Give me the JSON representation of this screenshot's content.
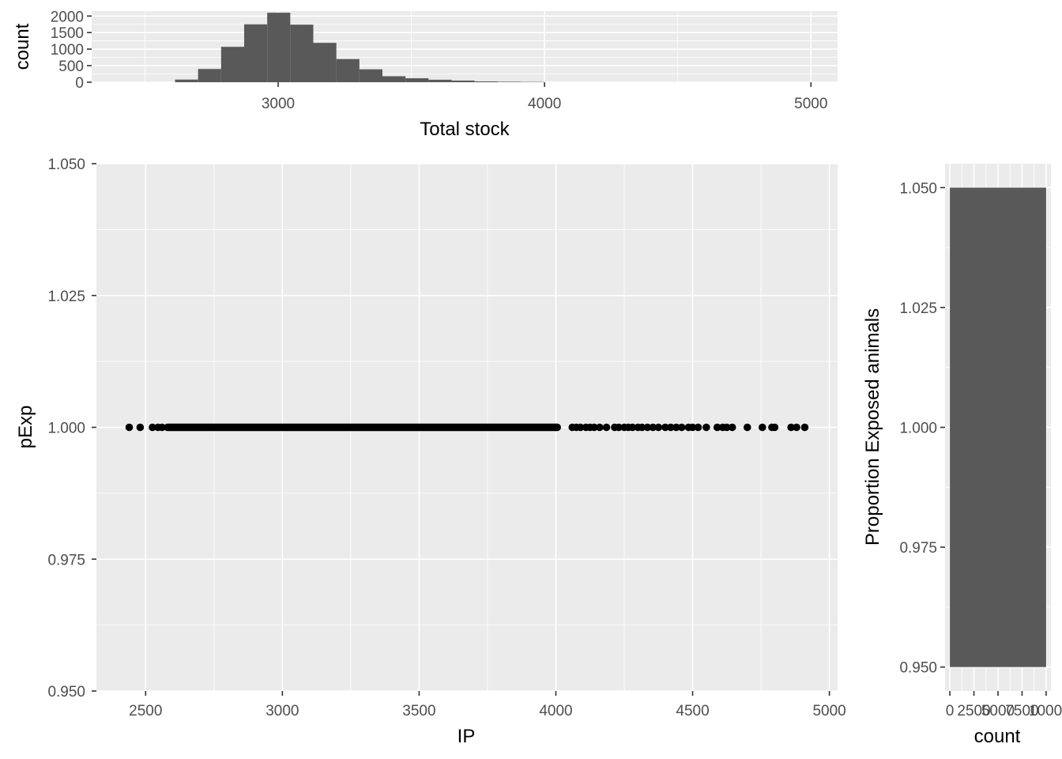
{
  "colors": {
    "panel": "#ebebeb",
    "bar": "#595959",
    "point": "#000000",
    "grid": "#ffffff",
    "tick_text": "#4d4d4d"
  },
  "chart_data": [
    {
      "id": "top-histogram",
      "type": "bar",
      "xlabel": "Total stock",
      "ylabel": "count",
      "xlim": [
        2300,
        5100
      ],
      "ylim": [
        0,
        2150
      ],
      "x_ticks": [
        3000,
        4000,
        5000
      ],
      "x_tick_labels": [
        "3000",
        "4000",
        "5000"
      ],
      "y_ticks": [
        0,
        500,
        1000,
        1500,
        2000
      ],
      "y_tick_labels": [
        "0",
        "500",
        "1000",
        "1500",
        "2000"
      ],
      "bin_width": 86.5,
      "bins_x_start": [
        2613,
        2699.5,
        2786,
        2872.5,
        2959,
        3045.5,
        3132,
        3218.5,
        3305,
        3391.5,
        3478,
        3564.5,
        3651,
        3737.5,
        3824,
        3910.5
      ],
      "values": [
        80,
        400,
        1070,
        1750,
        2100,
        1740,
        1190,
        700,
        390,
        180,
        120,
        75,
        50,
        25,
        15,
        10
      ],
      "grid": true
    },
    {
      "id": "main-scatter",
      "type": "scatter",
      "xlabel": "IP",
      "ylabel": "pExp",
      "xlim": [
        2320,
        5030
      ],
      "ylim": [
        0.95,
        1.05
      ],
      "x_ticks": [
        2500,
        3000,
        3500,
        4000,
        4500,
        5000
      ],
      "x_tick_labels": [
        "2500",
        "3000",
        "3500",
        "4000",
        "4500",
        "5000"
      ],
      "y_ticks": [
        0.95,
        0.975,
        1.0,
        1.025,
        1.05
      ],
      "y_tick_labels": [
        "0.950",
        "0.975",
        "1.000",
        "1.025",
        "1.050"
      ],
      "dense_x_range": [
        2580,
        4005
      ],
      "y": 1.0,
      "x": [
        2440,
        2480,
        2525,
        2545,
        2560,
        4060,
        4075,
        4090,
        4110,
        4125,
        4140,
        4160,
        4185,
        4215,
        4230,
        4250,
        4265,
        4280,
        4300,
        4315,
        4335,
        4355,
        4375,
        4400,
        4420,
        4440,
        4460,
        4485,
        4500,
        4520,
        4550,
        4590,
        4610,
        4625,
        4645,
        4700,
        4755,
        4790,
        4800,
        4860,
        4880,
        4910
      ],
      "grid": true
    },
    {
      "id": "right-histogram",
      "type": "bar",
      "orientation": "horizontal",
      "xlabel": "count",
      "ylabel": "Proportion Exposed animals",
      "ylim": [
        0.945,
        1.055
      ],
      "xlim": [
        -500,
        10500
      ],
      "x_ticks": [
        0,
        2500,
        5000,
        7500,
        10000
      ],
      "x_tick_labels": [
        "0",
        "2500",
        "5000",
        "7500",
        "10000"
      ],
      "y_ticks": [
        0.95,
        0.975,
        1.0,
        1.025,
        1.05
      ],
      "y_tick_labels": [
        "0.950",
        "0.975",
        "1.000",
        "1.025",
        "1.050"
      ],
      "bar_y_range": [
        0.95,
        1.05
      ],
      "values": [
        10000
      ],
      "grid": true
    }
  ]
}
